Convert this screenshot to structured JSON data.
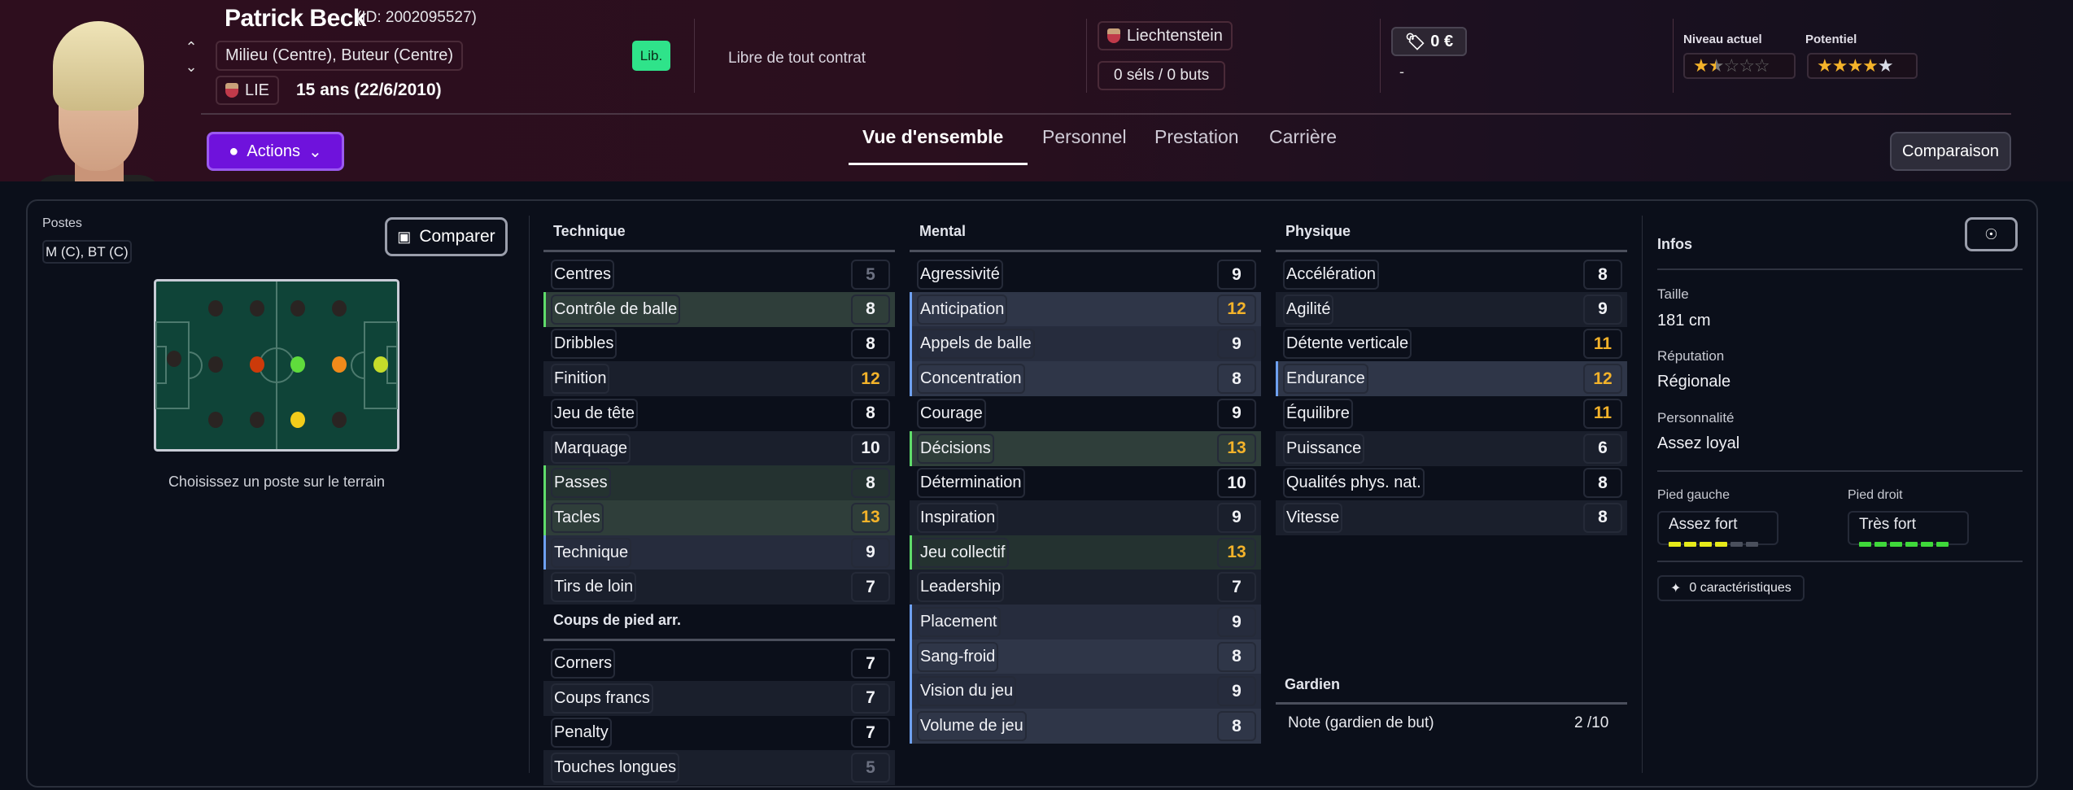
{
  "player": {
    "name": "Patrick Beck",
    "id_text": "(ID: 2002095527)",
    "positions": "Milieu (Centre), Buteur (Centre)",
    "nation_code": "LIE",
    "age_text": "15 ans (22/6/2010)",
    "status_badge": "Lib.",
    "contract": "Libre de tout contrat",
    "nation": "Liechtenstein",
    "caps": "0 séls / 0 buts",
    "value": "0 €",
    "value_sub": "-",
    "current_level_label": "Niveau actuel",
    "current_level_stars": 1.5,
    "potential_label": "Potentiel",
    "potential_stars": 4,
    "potential_stars_max_range": 5
  },
  "colors": {
    "accent": "#6f12dc",
    "lib_badge": "#2fe38a",
    "highlight_value": "#f4b32a",
    "green_highlight": "#5fdc6a",
    "blue_highlight": "#6ea0f0"
  },
  "actions_label": "Actions",
  "tabs": [
    {
      "label": "Vue d'ensemble",
      "active": true
    },
    {
      "label": "Personnel"
    },
    {
      "label": "Prestation"
    },
    {
      "label": "Carrière"
    }
  ],
  "comparison_label": "Comparaison",
  "left": {
    "postes_label": "Postes",
    "postes_value": "M (C), BT (C)",
    "compare_label": "Comparer",
    "pitch_caption": "Choisissez un poste sur le terrain",
    "pitch_positions": [
      {
        "pos": "GK",
        "color": "#2a2422"
      },
      {
        "pos": "DL",
        "color": "#2a2422"
      },
      {
        "pos": "DC",
        "color": "#2a2422"
      },
      {
        "pos": "DR",
        "color": "#2a2422"
      },
      {
        "pos": "DML",
        "color": "#2a2422"
      },
      {
        "pos": "DMC",
        "color": "#cc3a0a"
      },
      {
        "pos": "DMR",
        "color": "#2a2422"
      },
      {
        "pos": "ML",
        "color": "#2a2422"
      },
      {
        "pos": "MC",
        "color": "#5fdc3c"
      },
      {
        "pos": "MR",
        "color": "#f2cc1a"
      },
      {
        "pos": "AML",
        "color": "#2a2422"
      },
      {
        "pos": "AMC",
        "color": "#f08a1a"
      },
      {
        "pos": "AMR",
        "color": "#2a2422"
      },
      {
        "pos": "ST",
        "color": "#c6dc2a"
      }
    ]
  },
  "attributes": {
    "technique": {
      "title": "Technique",
      "rows": [
        {
          "label": "Centres",
          "value": 5,
          "tone": "low"
        },
        {
          "label": "Contrôle de balle",
          "value": 8,
          "hl": "green"
        },
        {
          "label": "Dribbles",
          "value": 8
        },
        {
          "label": "Finition",
          "value": 12,
          "tone": "high"
        },
        {
          "label": "Jeu de tête",
          "value": 8
        },
        {
          "label": "Marquage",
          "value": 10
        },
        {
          "label": "Passes",
          "value": 8,
          "hl": "green"
        },
        {
          "label": "Tacles",
          "value": 13,
          "tone": "high",
          "hl": "green"
        },
        {
          "label": "Technique",
          "value": 9,
          "hl": "blue"
        },
        {
          "label": "Tirs de loin",
          "value": 7
        }
      ]
    },
    "set_pieces": {
      "title": "Coups de pied arr.",
      "rows": [
        {
          "label": "Corners",
          "value": 7
        },
        {
          "label": "Coups francs",
          "value": 7
        },
        {
          "label": "Penalty",
          "value": 7
        },
        {
          "label": "Touches longues",
          "value": 5,
          "tone": "low"
        }
      ]
    },
    "mental": {
      "title": "Mental",
      "rows": [
        {
          "label": "Agressivité",
          "value": 9
        },
        {
          "label": "Anticipation",
          "value": 12,
          "tone": "high",
          "hl": "blue"
        },
        {
          "label": "Appels de balle",
          "value": 9,
          "hl": "blue"
        },
        {
          "label": "Concentration",
          "value": 8,
          "hl": "blue"
        },
        {
          "label": "Courage",
          "value": 9
        },
        {
          "label": "Décisions",
          "value": 13,
          "tone": "high",
          "hl": "green"
        },
        {
          "label": "Détermination",
          "value": 10
        },
        {
          "label": "Inspiration",
          "value": 9
        },
        {
          "label": "Jeu collectif",
          "value": 13,
          "tone": "high",
          "hl": "green"
        },
        {
          "label": "Leadership",
          "value": 7
        },
        {
          "label": "Placement",
          "value": 9,
          "hl": "blue"
        },
        {
          "label": "Sang-froid",
          "value": 8,
          "hl": "blue"
        },
        {
          "label": "Vision du jeu",
          "value": 9,
          "hl": "blue"
        },
        {
          "label": "Volume de jeu",
          "value": 8,
          "hl": "blue"
        }
      ]
    },
    "physique": {
      "title": "Physique",
      "rows": [
        {
          "label": "Accélération",
          "value": 8
        },
        {
          "label": "Agilité",
          "value": 9
        },
        {
          "label": "Détente verticale",
          "value": 11,
          "tone": "high"
        },
        {
          "label": "Endurance",
          "value": 12,
          "tone": "high",
          "hl": "blue"
        },
        {
          "label": "Équilibre",
          "value": 11,
          "tone": "high"
        },
        {
          "label": "Puissance",
          "value": 6
        },
        {
          "label": "Qualités phys. nat.",
          "value": 8
        },
        {
          "label": "Vitesse",
          "value": 8
        }
      ]
    },
    "goalkeeper": {
      "title": "Gardien",
      "label": "Note (gardien de but)",
      "value": "2 /10"
    }
  },
  "infos": {
    "title": "Infos",
    "height_label": "Taille",
    "height_value": "181 cm",
    "reputation_label": "Réputation",
    "reputation_value": "Régionale",
    "personality_label": "Personnalité",
    "personality_value": "Assez loyal",
    "left_foot_label": "Pied gauche",
    "left_foot_value": "Assez fort",
    "left_foot_level": 4,
    "left_foot_color": "#e6ea1a",
    "right_foot_label": "Pied droit",
    "right_foot_value": "Très fort",
    "right_foot_level": 6,
    "right_foot_color": "#3fd83a",
    "foot_level_max": 6,
    "traits_label": "0 caractéristiques"
  }
}
